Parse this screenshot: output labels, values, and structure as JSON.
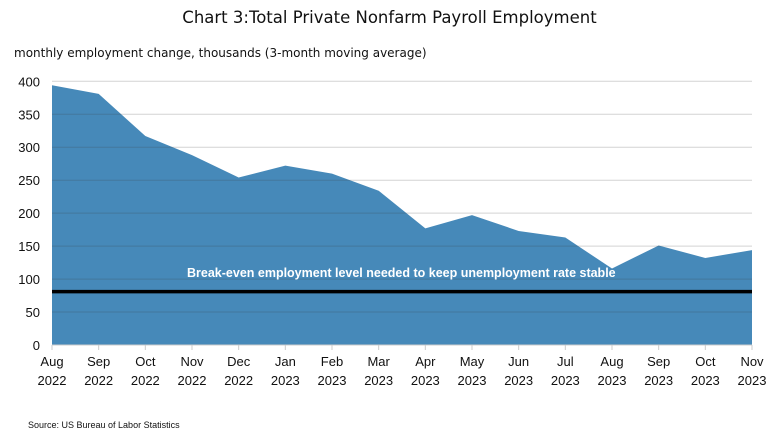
{
  "chart_data": {
    "type": "area",
    "title": "Chart 3:Total Private Nonfarm Payroll Employment",
    "ylabel": "monthly employment change, thousands (3-month moving average)",
    "xlabel": "",
    "source": "Source:  US Bureau of Labor Statistics",
    "categories": [
      [
        "Aug",
        "2022"
      ],
      [
        "Sep",
        "2022"
      ],
      [
        "Oct",
        "2022"
      ],
      [
        "Nov",
        "2022"
      ],
      [
        "Dec",
        "2022"
      ],
      [
        "Jan",
        "2023"
      ],
      [
        "Feb",
        "2023"
      ],
      [
        "Mar",
        "2023"
      ],
      [
        "Apr",
        "2023"
      ],
      [
        "May",
        "2023"
      ],
      [
        "Jun",
        "2023"
      ],
      [
        "Jul",
        "2023"
      ],
      [
        "Aug",
        "2023"
      ],
      [
        "Sep",
        "2023"
      ],
      [
        "Oct",
        "2023"
      ],
      [
        "Nov",
        "2023"
      ]
    ],
    "values": [
      394,
      381,
      317,
      288,
      254,
      272,
      260,
      234,
      177,
      197,
      173,
      163,
      116,
      151,
      132,
      144
    ],
    "ylim": [
      0,
      400
    ],
    "yticks": [
      0,
      50,
      100,
      150,
      200,
      250,
      300,
      350,
      400
    ],
    "grid": true,
    "area_color": "#4689b9",
    "reference_line": {
      "value": 81,
      "label": "Break-even employment level needed to keep unemployment rate stable",
      "color": "#000000"
    }
  }
}
